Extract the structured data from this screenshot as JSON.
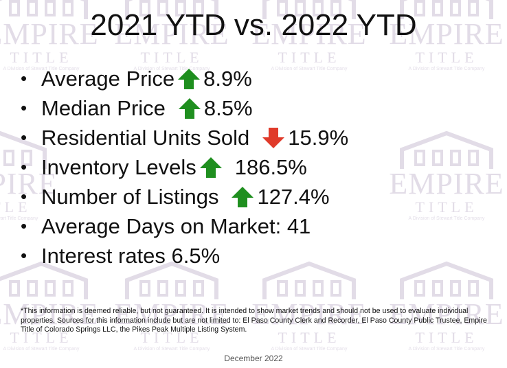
{
  "slide": {
    "title": "2021 YTD vs. 2022 YTD",
    "bullets": [
      {
        "label": "Average Price",
        "change": "8.9%",
        "direction": "up"
      },
      {
        "label": "Median Price",
        "change": "8.5%",
        "direction": "up"
      },
      {
        "label": "Residential Units Sold",
        "change": "15.9%",
        "direction": "down"
      },
      {
        "label": "Inventory Levels",
        "change": "186.5%",
        "direction": "up"
      },
      {
        "label": "Number of Listings",
        "change": "127.4%",
        "direction": "up"
      },
      {
        "label": "Average Days on Market: 41"
      },
      {
        "label": "Interest rates 6.5%"
      }
    ],
    "disclaimer": "*This information is deemed reliable, but not guaranteed.  It is intended to show market trends and should not be used to evaluate individual properties.  Sources for this information include but are not limited to: El Paso County Clerk and Recorder, El Paso County Public Trustee, Empire Title of Colorado Springs LLC, the Pikes Peak Multiple Listing System.",
    "date": "December 2022"
  },
  "watermark": {
    "word1": "EMPIRE",
    "word2": "TITLE",
    "division": "A Division of Stewart Title Company"
  },
  "colors": {
    "arrow_up": "#1f8f1f",
    "arrow_down": "#e03a2a",
    "watermark": "#e2dce7"
  }
}
